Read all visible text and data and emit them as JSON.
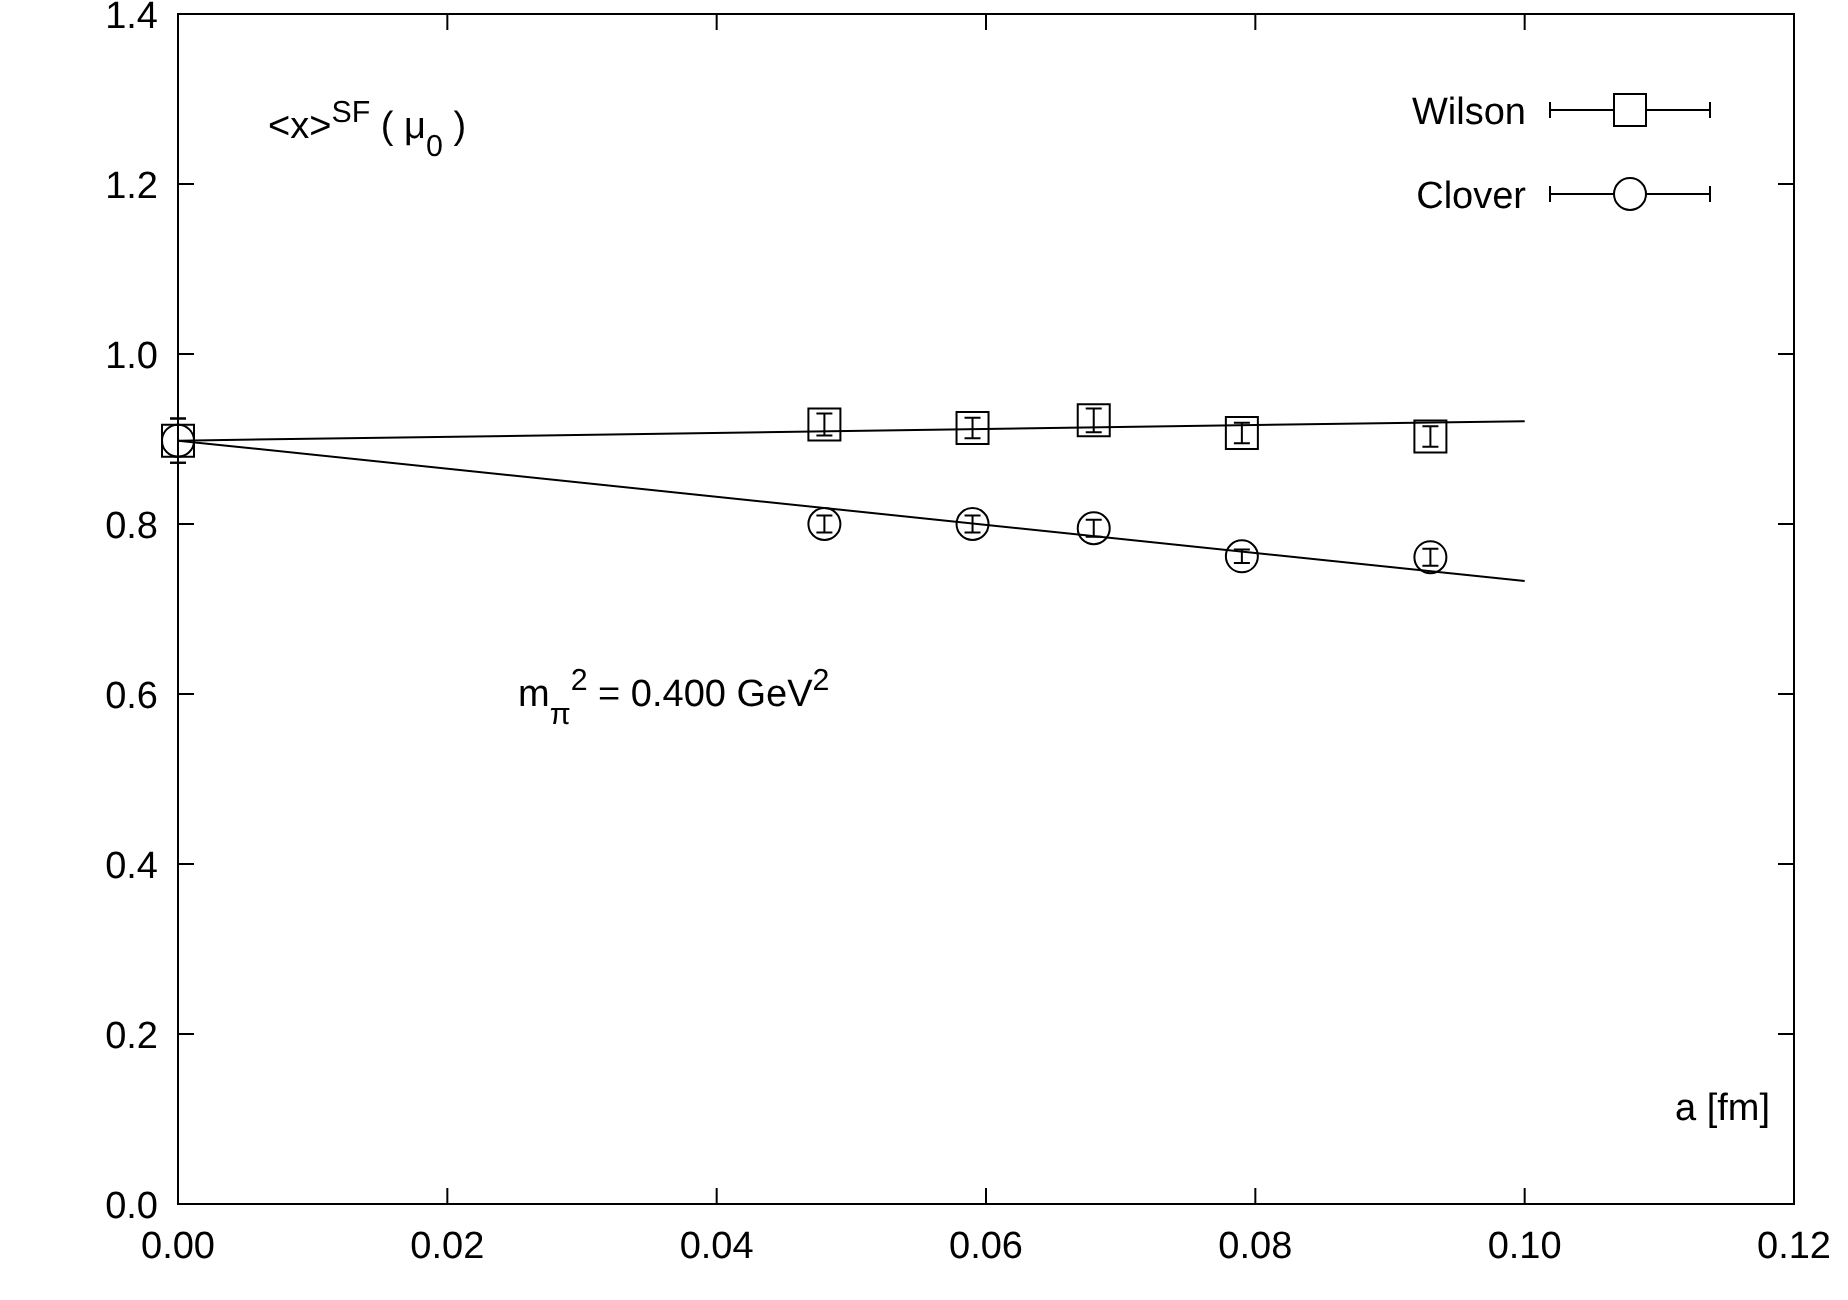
{
  "chart_data": {
    "type": "scatter",
    "xlabel": "a [fm]",
    "annotations": [
      "<x>$^{SF}$ ( μ$_{0}$ )",
      {
        "text": "m$_{π}$$^{2}$ = 0.400 GeV$^{2}$"
      }
    ],
    "xlim": [
      0,
      0.12
    ],
    "ylim": [
      0,
      1.4
    ],
    "xticks": [
      {
        "value": 0,
        "label": "0.00"
      },
      {
        "value": 0.02,
        "label": "0.02"
      },
      {
        "value": 0.04,
        "label": "0.04"
      },
      {
        "value": 0.06,
        "label": "0.06"
      },
      {
        "value": 0.08,
        "label": "0.08"
      },
      {
        "value": 0.1,
        "label": "0.10"
      },
      {
        "value": 0.12,
        "label": "0.12"
      }
    ],
    "yticks": [
      {
        "value": 0,
        "label": "0.0"
      },
      {
        "value": 0.2,
        "label": "0.2"
      },
      {
        "value": 0.4,
        "label": "0.4"
      },
      {
        "value": 0.6,
        "label": "0.6"
      },
      {
        "value": 0.8,
        "label": "0.8"
      },
      {
        "value": 1,
        "label": "1.0"
      },
      {
        "value": 1.2,
        "label": "1.2"
      },
      {
        "value": 1.4,
        "label": "1.4"
      }
    ],
    "grid": false,
    "legend": "top right",
    "series": [
      {
        "name": "Wilson",
        "color": "#000000",
        "marker": "square",
        "x": [
          0,
          0.048,
          0.059,
          0.068,
          0.079,
          0.093
        ],
        "values": [
          0.898,
          0.917,
          0.913,
          0.922,
          0.907,
          0.903
        ],
        "errors": [
          0.026,
          0.013,
          0.012,
          0.014,
          0.012,
          0.012
        ]
      },
      {
        "name": "Clover",
        "color": "#000000",
        "marker": "circle",
        "x": [
          0,
          0.048,
          0.059,
          0.068,
          0.079,
          0.093
        ],
        "values": [
          0.898,
          0.8,
          0.8,
          0.795,
          0.762,
          0.761
        ],
        "errors": [
          0.026,
          0.01,
          0.01,
          0.01,
          0.008,
          0.01
        ]
      },
      {
        "type": "line",
        "color": "#000000",
        "marker": "none",
        "x": [
          0,
          0.1
        ],
        "values": [
          0.898,
          0.921
        ]
      },
      {
        "type": "line",
        "color": "#000000",
        "marker": "none",
        "x": [
          0,
          0.1
        ],
        "values": [
          0.898,
          0.733
        ]
      }
    ]
  }
}
